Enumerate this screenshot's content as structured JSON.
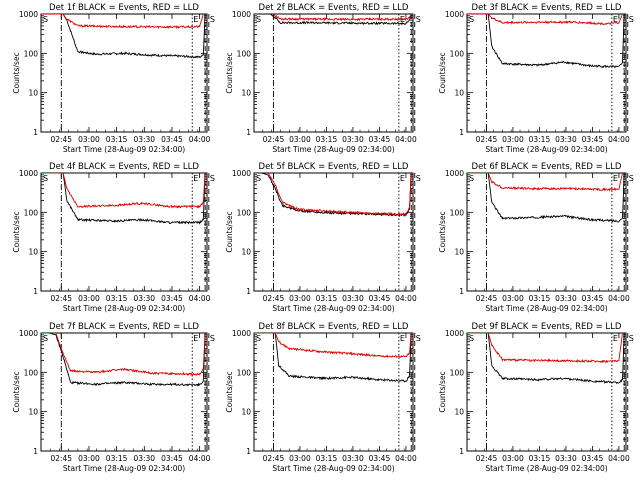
{
  "colors": {
    "events": "#000000",
    "lld": "#dd0000",
    "axes": "#000000",
    "background": "#ffffff"
  },
  "chart_data": [
    {
      "type": "line",
      "title": "Det 1f BLACK = Events, RED = LLD",
      "xlabel": "Start Time (28-Aug-09 02:34:00)",
      "ylabel": "Counts/sec",
      "yscale": "log",
      "ylim": [
        1,
        1000
      ],
      "grid": false,
      "x_tick_labels": [
        "02:45",
        "03:00",
        "03:15",
        "03:30",
        "03:45",
        "04:00"
      ],
      "y_tick_labels": [
        "1",
        "10",
        "100",
        "1000"
      ],
      "event_labels": [
        "S",
        "E",
        "S"
      ],
      "event_lines": [
        "02:45",
        "03:56",
        "04:03",
        "04:05"
      ],
      "series": [
        {
          "name": "Events",
          "values": [
            [
              0,
              1000
            ],
            [
              12,
              1000
            ],
            [
              14,
              700
            ],
            [
              20,
              110
            ],
            [
              30,
              95
            ],
            [
              45,
              100
            ],
            [
              60,
              90
            ],
            [
              75,
              85
            ],
            [
              86,
              80
            ],
            [
              88,
              90
            ],
            [
              89,
              1000
            ]
          ]
        },
        {
          "name": "LLD",
          "values": [
            [
              0,
              1000
            ],
            [
              12,
              1000
            ],
            [
              13,
              800
            ],
            [
              20,
              500
            ],
            [
              40,
              480
            ],
            [
              60,
              470
            ],
            [
              80,
              470
            ],
            [
              86,
              480
            ],
            [
              88,
              1000
            ]
          ]
        }
      ]
    },
    {
      "type": "line",
      "title": "Det 2f BLACK = Events, RED = LLD",
      "xlabel": "Start Time (28-Aug-09 02:34:00)",
      "ylabel": "Counts/sec",
      "yscale": "log",
      "ylim": [
        1,
        1000
      ],
      "grid": false,
      "x_tick_labels": [
        "02:45",
        "03:00",
        "03:15",
        "03:30",
        "03:45",
        "04:00"
      ],
      "y_tick_labels": [
        "1",
        "10",
        "100",
        "1000"
      ],
      "event_labels": [
        "S",
        "E",
        "S"
      ],
      "event_lines": [
        "02:45",
        "03:56",
        "04:03",
        "04:05"
      ],
      "series": [
        {
          "name": "Events",
          "values": [
            [
              0,
              1000
            ],
            [
              4,
              1000
            ],
            [
              8,
              1100
            ],
            [
              12,
              800
            ],
            [
              15,
              600
            ],
            [
              30,
              600
            ],
            [
              50,
              590
            ],
            [
              70,
              580
            ],
            [
              86,
              570
            ],
            [
              88,
              700
            ],
            [
              89,
              1000
            ]
          ]
        },
        {
          "name": "LLD",
          "values": [
            [
              0,
              1000
            ],
            [
              4,
              1050
            ],
            [
              8,
              1300
            ],
            [
              12,
              900
            ],
            [
              15,
              750
            ],
            [
              30,
              740
            ],
            [
              50,
              730
            ],
            [
              70,
              740
            ],
            [
              86,
              740
            ],
            [
              88,
              800
            ],
            [
              89,
              1000
            ]
          ]
        }
      ]
    },
    {
      "type": "line",
      "title": "Det 3f BLACK = Events, RED = LLD",
      "xlabel": "Start Time (28-Aug-09 02:34:00)",
      "ylabel": "Counts/sec",
      "yscale": "log",
      "ylim": [
        1,
        1000
      ],
      "grid": false,
      "x_tick_labels": [
        "02:45",
        "03:00",
        "03:15",
        "03:30",
        "03:45",
        "04:00"
      ],
      "y_tick_labels": [
        "1",
        "10",
        "100",
        "1000"
      ],
      "event_labels": [
        "S",
        "E",
        "S"
      ],
      "event_lines": [
        "02:45",
        "03:56",
        "04:03",
        "04:05"
      ],
      "series": [
        {
          "name": "Events",
          "values": [
            [
              0,
              1000
            ],
            [
              12,
              1000
            ],
            [
              14,
              150
            ],
            [
              20,
              55
            ],
            [
              40,
              50
            ],
            [
              55,
              60
            ],
            [
              70,
              48
            ],
            [
              86,
              45
            ],
            [
              88,
              60
            ],
            [
              89,
              1000
            ]
          ]
        },
        {
          "name": "LLD",
          "values": [
            [
              0,
              1000
            ],
            [
              12,
              1000
            ],
            [
              14,
              800
            ],
            [
              20,
              600
            ],
            [
              40,
              620
            ],
            [
              60,
              620
            ],
            [
              80,
              560
            ],
            [
              86,
              600
            ],
            [
              88,
              1000
            ]
          ]
        }
      ]
    },
    {
      "type": "line",
      "title": "Det 4f BLACK = Events, RED = LLD",
      "xlabel": "Start Time (28-Aug-09 02:34:00)",
      "ylabel": "Counts/sec",
      "yscale": "log",
      "ylim": [
        1,
        1000
      ],
      "grid": false,
      "x_tick_labels": [
        "02:45",
        "03:00",
        "03:15",
        "03:30",
        "03:45",
        "04:00"
      ],
      "y_tick_labels": [
        "1",
        "10",
        "100",
        "1000"
      ],
      "event_labels": [
        "S",
        "E",
        "S"
      ],
      "event_lines": [
        "02:45",
        "03:56",
        "04:03",
        "04:05"
      ],
      "series": [
        {
          "name": "Events",
          "values": [
            [
              0,
              1000
            ],
            [
              12,
              1000
            ],
            [
              14,
              200
            ],
            [
              20,
              65
            ],
            [
              40,
              60
            ],
            [
              55,
              65
            ],
            [
              70,
              55
            ],
            [
              86,
              55
            ],
            [
              88,
              65
            ],
            [
              89,
              1000
            ]
          ]
        },
        {
          "name": "LLD",
          "values": [
            [
              0,
              1000
            ],
            [
              12,
              1000
            ],
            [
              14,
              400
            ],
            [
              20,
              140
            ],
            [
              40,
              150
            ],
            [
              55,
              170
            ],
            [
              70,
              140
            ],
            [
              86,
              140
            ],
            [
              88,
              180
            ],
            [
              89,
              1000
            ]
          ]
        }
      ]
    },
    {
      "type": "line",
      "title": "Det 5f BLACK = Events, RED = LLD",
      "xlabel": "Start Time (28-Aug-09 02:34:00)",
      "ylabel": "Counts/sec",
      "yscale": "log",
      "ylim": [
        1,
        1000
      ],
      "grid": false,
      "x_tick_labels": [
        "02:45",
        "03:00",
        "03:15",
        "03:30",
        "03:45",
        "04:00"
      ],
      "y_tick_labels": [
        "1",
        "10",
        "100",
        "1000"
      ],
      "event_labels": [
        "S",
        "E",
        "S"
      ],
      "event_lines": [
        "02:45",
        "03:56",
        "04:03",
        "04:05"
      ],
      "series": [
        {
          "name": "Events",
          "values": [
            [
              0,
              1000
            ],
            [
              4,
              1000
            ],
            [
              8,
              900
            ],
            [
              12,
              400
            ],
            [
              16,
              150
            ],
            [
              25,
              110
            ],
            [
              45,
              95
            ],
            [
              65,
              90
            ],
            [
              86,
              85
            ],
            [
              88,
              120
            ],
            [
              89,
              1000
            ]
          ]
        },
        {
          "name": "LLD",
          "values": [
            [
              0,
              1000
            ],
            [
              4,
              1050
            ],
            [
              8,
              1000
            ],
            [
              12,
              500
            ],
            [
              16,
              180
            ],
            [
              25,
              120
            ],
            [
              45,
              105
            ],
            [
              65,
              95
            ],
            [
              86,
              90
            ],
            [
              88,
              130
            ],
            [
              89,
              1000
            ]
          ]
        }
      ]
    },
    {
      "type": "line",
      "title": "Det 6f BLACK = Events, RED = LLD",
      "xlabel": "Start Time (28-Aug-09 02:34:00)",
      "ylabel": "Counts/sec",
      "yscale": "log",
      "ylim": [
        1,
        1000
      ],
      "grid": false,
      "x_tick_labels": [
        "02:45",
        "03:00",
        "03:15",
        "03:30",
        "03:45",
        "04:00"
      ],
      "y_tick_labels": [
        "1",
        "10",
        "100",
        "1000"
      ],
      "event_labels": [
        "S",
        "E",
        "S"
      ],
      "event_lines": [
        "02:45",
        "03:56",
        "04:03",
        "04:05"
      ],
      "series": [
        {
          "name": "Events",
          "values": [
            [
              0,
              1000
            ],
            [
              12,
              1000
            ],
            [
              14,
              180
            ],
            [
              20,
              70
            ],
            [
              40,
              75
            ],
            [
              55,
              80
            ],
            [
              70,
              65
            ],
            [
              86,
              60
            ],
            [
              88,
              70
            ],
            [
              89,
              1000
            ]
          ]
        },
        {
          "name": "LLD",
          "values": [
            [
              0,
              1000
            ],
            [
              12,
              1000
            ],
            [
              14,
              600
            ],
            [
              20,
              420
            ],
            [
              40,
              400
            ],
            [
              60,
              400
            ],
            [
              80,
              380
            ],
            [
              86,
              390
            ],
            [
              88,
              1000
            ]
          ]
        }
      ]
    },
    {
      "type": "line",
      "title": "Det 7f BLACK = Events, RED = LLD",
      "xlabel": "Start Time (28-Aug-09 02:34:00)",
      "ylabel": "Counts/sec",
      "yscale": "log",
      "ylim": [
        1,
        1000
      ],
      "grid": false,
      "x_tick_labels": [
        "02:45",
        "03:00",
        "03:15",
        "03:30",
        "03:45",
        "04:00"
      ],
      "y_tick_labels": [
        "1",
        "10",
        "100",
        "1000"
      ],
      "event_labels": [
        "S",
        "E",
        "S"
      ],
      "event_lines": [
        "02:45",
        "03:56",
        "04:03",
        "04:05"
      ],
      "series": [
        {
          "name": "Events",
          "values": [
            [
              0,
              1000
            ],
            [
              4,
              1000
            ],
            [
              8,
              900
            ],
            [
              12,
              250
            ],
            [
              16,
              55
            ],
            [
              30,
              50
            ],
            [
              45,
              55
            ],
            [
              60,
              50
            ],
            [
              86,
              48
            ],
            [
              88,
              60
            ],
            [
              89,
              1000
            ]
          ]
        },
        {
          "name": "LLD",
          "values": [
            [
              0,
              1000
            ],
            [
              4,
              1000
            ],
            [
              8,
              1000
            ],
            [
              12,
              300
            ],
            [
              16,
              110
            ],
            [
              30,
              100
            ],
            [
              45,
              120
            ],
            [
              60,
              95
            ],
            [
              86,
              90
            ],
            [
              88,
              120
            ],
            [
              89,
              1000
            ]
          ]
        }
      ]
    },
    {
      "type": "line",
      "title": "Det 8f BLACK = Events, RED = LLD",
      "xlabel": "Start Time (28-Aug-09 02:34:00)",
      "ylabel": "Counts/sec",
      "yscale": "log",
      "ylim": [
        1,
        1000
      ],
      "grid": false,
      "x_tick_labels": [
        "02:45",
        "03:00",
        "03:15",
        "03:30",
        "03:45",
        "04:00"
      ],
      "y_tick_labels": [
        "1",
        "10",
        "100",
        "1000"
      ],
      "event_labels": [
        "S",
        "E",
        "S"
      ],
      "event_lines": [
        "02:45",
        "03:56",
        "04:03",
        "04:05"
      ],
      "series": [
        {
          "name": "Events",
          "values": [
            [
              0,
              1000
            ],
            [
              12,
              1000
            ],
            [
              14,
              150
            ],
            [
              20,
              80
            ],
            [
              40,
              70
            ],
            [
              55,
              75
            ],
            [
              70,
              65
            ],
            [
              86,
              60
            ],
            [
              88,
              80
            ],
            [
              89,
              1000
            ]
          ]
        },
        {
          "name": "LLD",
          "values": [
            [
              0,
              1000
            ],
            [
              12,
              1000
            ],
            [
              14,
              600
            ],
            [
              20,
              400
            ],
            [
              40,
              330
            ],
            [
              55,
              300
            ],
            [
              70,
              260
            ],
            [
              86,
              250
            ],
            [
              88,
              300
            ],
            [
              89,
              1000
            ]
          ]
        }
      ]
    },
    {
      "type": "line",
      "title": "Det 9f BLACK = Events, RED = LLD",
      "xlabel": "Start Time (28-Aug-09 02:34:00)",
      "ylabel": "Counts/sec",
      "yscale": "log",
      "ylim": [
        1,
        1000
      ],
      "grid": false,
      "x_tick_labels": [
        "02:45",
        "03:00",
        "03:15",
        "03:30",
        "03:45",
        "04:00"
      ],
      "y_tick_labels": [
        "1",
        "10",
        "100",
        "1000"
      ],
      "event_labels": [
        "S",
        "E",
        "S"
      ],
      "event_lines": [
        "02:45",
        "03:56",
        "04:03",
        "04:05"
      ],
      "series": [
        {
          "name": "Events",
          "values": [
            [
              0,
              1000
            ],
            [
              12,
              1000
            ],
            [
              14,
              150
            ],
            [
              20,
              70
            ],
            [
              40,
              65
            ],
            [
              55,
              70
            ],
            [
              70,
              60
            ],
            [
              86,
              55
            ],
            [
              88,
              65
            ],
            [
              89,
              1000
            ]
          ]
        },
        {
          "name": "LLD",
          "values": [
            [
              0,
              1000
            ],
            [
              12,
              1000
            ],
            [
              14,
              500
            ],
            [
              20,
              210
            ],
            [
              40,
              200
            ],
            [
              60,
              195
            ],
            [
              80,
              190
            ],
            [
              86,
              200
            ],
            [
              88,
              1000
            ]
          ]
        }
      ]
    }
  ]
}
